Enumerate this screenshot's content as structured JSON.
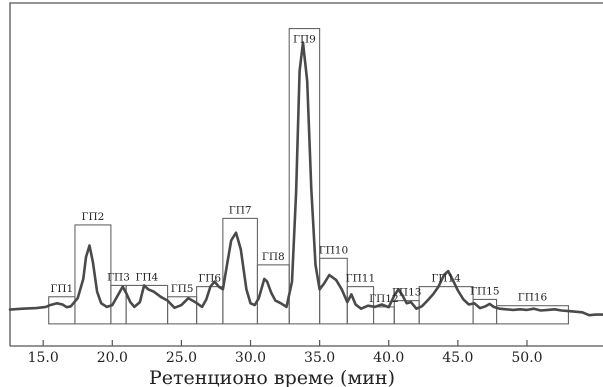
{
  "chart_data": {
    "type": "line",
    "title": "",
    "xlabel": "Ретенционо време (мин)",
    "ylabel": "",
    "xlim": [
      12.6,
      55.5
    ],
    "ylim": [
      0,
      100
    ],
    "xticks": [
      15.0,
      20.0,
      25.0,
      30.0,
      35.0,
      40.0,
      45.0,
      50.0
    ],
    "xtick_labels": [
      "15.0",
      "20.0",
      "25.0",
      "30.0",
      "35.0",
      "40.0",
      "45.0",
      "50.0"
    ],
    "grid": false,
    "legend": "none",
    "line_color": "#4a4a4a",
    "frame_color": "#555555",
    "series": [
      {
        "x": [
          12.6,
          13.5,
          14.5,
          15.2,
          15.5,
          16.0,
          16.4,
          16.7,
          17.0,
          17.5,
          17.9,
          18.1,
          18.35,
          18.6,
          18.9,
          19.2,
          19.6,
          20.0,
          20.5,
          20.75,
          21.0,
          21.3,
          21.6,
          22.0,
          22.3,
          22.6,
          23.0,
          23.5,
          24.0,
          24.5,
          25.0,
          25.5,
          26.0,
          26.5,
          26.8,
          27.1,
          27.4,
          27.7,
          28.0,
          28.3,
          28.6,
          28.95,
          29.3,
          29.7,
          30.0,
          30.3,
          30.6,
          31.0,
          31.2,
          31.5,
          31.8,
          32.2,
          32.6,
          33.0,
          33.3,
          33.55,
          33.8,
          34.1,
          34.4,
          34.7,
          35.0,
          35.3,
          35.7,
          36.2,
          36.6,
          37.0,
          37.3,
          37.6,
          38.0,
          38.5,
          39.0,
          39.5,
          40.0,
          40.4,
          40.7,
          41.0,
          41.3,
          41.6,
          42.0,
          42.4,
          42.8,
          43.2,
          43.6,
          44.0,
          44.3,
          44.6,
          45.0,
          45.4,
          45.8,
          46.2,
          46.6,
          47.0,
          47.3,
          47.6,
          48.0,
          48.5,
          49.0,
          49.5,
          50.0,
          50.5,
          51.0,
          51.5,
          52.0,
          52.5,
          53.0,
          53.5,
          54.0,
          54.5,
          55.0,
          55.5
        ],
        "y": [
          3.5,
          3.8,
          4.0,
          4.4,
          5.0,
          5.6,
          5.2,
          4.3,
          4.6,
          7.3,
          13.8,
          21.1,
          25.0,
          19.4,
          9.5,
          5.6,
          4.4,
          5.0,
          9.1,
          11.2,
          9.1,
          6.0,
          4.4,
          6.0,
          11.6,
          10.3,
          9.5,
          7.8,
          6.5,
          4.1,
          5.0,
          7.3,
          6.0,
          4.4,
          6.9,
          11.2,
          12.9,
          11.2,
          10.3,
          18.5,
          26.7,
          29.3,
          23.7,
          10.3,
          5.6,
          5.0,
          7.3,
          13.8,
          12.9,
          9.1,
          6.5,
          5.6,
          4.4,
          12.9,
          42.7,
          83.6,
          93.1,
          80.2,
          44.0,
          18.5,
          10.3,
          12.1,
          15.1,
          13.4,
          10.3,
          6.0,
          8.6,
          5.2,
          3.8,
          4.8,
          4.4,
          5.2,
          4.3,
          8.2,
          10.3,
          8.2,
          5.6,
          6.0,
          3.8,
          4.6,
          6.5,
          8.6,
          11.2,
          15.1,
          16.4,
          13.8,
          9.9,
          6.9,
          5.2,
          5.6,
          4.0,
          4.6,
          5.4,
          4.4,
          3.8,
          3.6,
          3.4,
          3.6,
          3.4,
          3.8,
          3.2,
          3.4,
          3.6,
          3.2,
          3.0,
          2.8,
          2.6,
          1.6,
          1.8,
          1.8
        ]
      }
    ],
    "fractions": [
      {
        "label": "ГП1",
        "x0": 15.4,
        "x1": 17.3,
        "ytop": 7.8
      },
      {
        "label": "ГП2",
        "x0": 17.3,
        "x1": 19.9,
        "ytop": 31.9
      },
      {
        "label": "ГП3",
        "x0": 19.9,
        "x1": 21.0,
        "ytop": 11.6
      },
      {
        "label": "ГП4",
        "x0": 21.0,
        "x1": 24.0,
        "ytop": 11.6
      },
      {
        "label": "ГП5",
        "x0": 24.0,
        "x1": 26.1,
        "ytop": 7.8
      },
      {
        "label": "ГП6",
        "x0": 26.1,
        "x1": 28.0,
        "ytop": 11.2
      },
      {
        "label": "ГП7",
        "x0": 28.0,
        "x1": 30.5,
        "ytop": 34.1
      },
      {
        "label": "ГП8",
        "x0": 30.5,
        "x1": 32.8,
        "ytop": 18.5
      },
      {
        "label": "ГП9",
        "x0": 32.8,
        "x1": 35.0,
        "ytop": 97.8
      },
      {
        "label": "ГП10",
        "x0": 35.0,
        "x1": 37.0,
        "ytop": 20.7
      },
      {
        "label": "ГП11",
        "x0": 37.0,
        "x1": 38.9,
        "ytop": 11.2
      },
      {
        "label": "ГП12",
        "x0": 38.9,
        "x1": 40.4,
        "ytop": 4.4
      },
      {
        "label": "ГП13",
        "x0": 40.4,
        "x1": 42.2,
        "ytop": 6.5
      },
      {
        "label": "ГП14",
        "x0": 42.2,
        "x1": 46.1,
        "ytop": 11.2
      },
      {
        "label": "ГП15",
        "x0": 46.1,
        "x1": 47.8,
        "ytop": 6.9
      },
      {
        "label": "ГП16",
        "x0": 47.8,
        "x1": 53.0,
        "ytop": 4.8
      }
    ]
  }
}
